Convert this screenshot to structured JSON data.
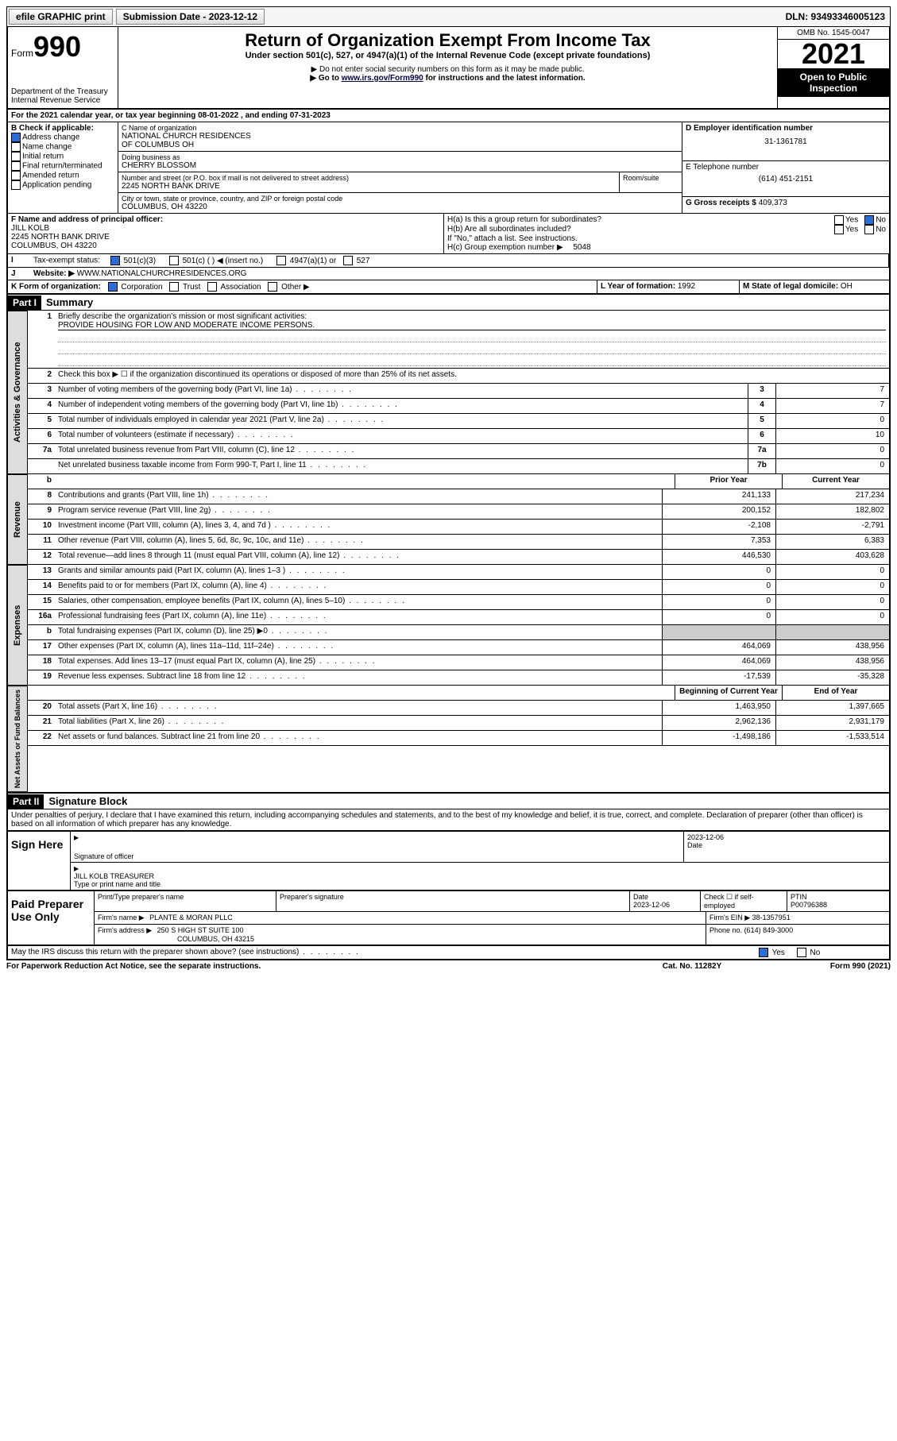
{
  "topbar": {
    "efile": "efile GRAPHIC print",
    "submission_label": "Submission Date - 2023-12-12",
    "dln": "DLN: 93493346005123"
  },
  "header": {
    "form_prefix": "Form",
    "form_num": "990",
    "dept": "Department of the Treasury",
    "irs": "Internal Revenue Service",
    "title": "Return of Organization Exempt From Income Tax",
    "sub": "Under section 501(c), 527, or 4947(a)(1) of the Internal Revenue Code (except private foundations)",
    "note1": "▶ Do not enter social security numbers on this form as it may be made public.",
    "note2_pre": "▶ Go to ",
    "note2_link": "www.irs.gov/Form990",
    "note2_post": " for instructions and the latest information.",
    "omb": "OMB No. 1545-0047",
    "year": "2021",
    "inspect1": "Open to Public",
    "inspect2": "Inspection"
  },
  "lineA": "For the 2021 calendar year, or tax year beginning 08-01-2022    , and ending 07-31-2023",
  "boxB": {
    "label": "B Check if applicable:",
    "items": [
      "Address change",
      "Name change",
      "Initial return",
      "Final return/terminated",
      "Amended return",
      "Application pending"
    ],
    "checked_idx": 0
  },
  "boxC": {
    "label_name": "C Name of organization",
    "org1": "NATIONAL CHURCH RESIDENCES",
    "org2": "OF COLUMBUS OH",
    "dba_label": "Doing business as",
    "dba": "CHERRY BLOSSOM",
    "addr_label": "Number and street (or P.O. box if mail is not delivered to street address)",
    "addr": "2245 NORTH BANK DRIVE",
    "room_label": "Room/suite",
    "city_label": "City or town, state or province, country, and ZIP or foreign postal code",
    "city": "COLUMBUS, OH  43220"
  },
  "boxD": {
    "label": "D Employer identification number",
    "val": "31-1361781"
  },
  "boxE": {
    "label": "E Telephone number",
    "val": "(614) 451-2151"
  },
  "boxG": {
    "label": "G Gross receipts $",
    "val": "409,373"
  },
  "boxF": {
    "label": "F Name and address of principal officer:",
    "name": "JILL KOLB",
    "addr": "2245 NORTH BANK DRIVE",
    "city": "COLUMBUS, OH  43220"
  },
  "boxH": {
    "ha": "H(a)  Is this a group return for subordinates?",
    "hb": "H(b)  Are all subordinates included?",
    "hnote": "If \"No,\" attach a list. See instructions.",
    "hc": "H(c)  Group exemption number ▶",
    "hc_val": "5048",
    "yes": "Yes",
    "no": "No"
  },
  "boxI": {
    "label": "Tax-exempt status:",
    "opts": [
      "501(c)(3)",
      "501(c) (  ) ◀ (insert no.)",
      "4947(a)(1) or",
      "527"
    ]
  },
  "boxJ": {
    "label": "Website: ▶",
    "val": "WWW.NATIONALCHURCHRESIDENCES.ORG"
  },
  "boxK": {
    "label": "K Form of organization:",
    "opts": [
      "Corporation",
      "Trust",
      "Association",
      "Other ▶"
    ]
  },
  "boxL": {
    "label": "L Year of formation:",
    "val": "1992"
  },
  "boxM": {
    "label": "M State of legal domicile:",
    "val": "OH"
  },
  "part1": {
    "header": "Part I",
    "title": "Summary",
    "l1_label": "Briefly describe the organization's mission or most significant activities:",
    "l1_text": "PROVIDE HOUSING FOR LOW AND MODERATE INCOME PERSONS.",
    "l2": "Check this box ▶ ☐  if the organization discontinued its operations or disposed of more than 25% of its net assets.",
    "gov_rows": [
      {
        "n": "3",
        "label": "Number of voting members of the governing body (Part VI, line 1a)",
        "box": "3",
        "val": "7"
      },
      {
        "n": "4",
        "label": "Number of independent voting members of the governing body (Part VI, line 1b)",
        "box": "4",
        "val": "7"
      },
      {
        "n": "5",
        "label": "Total number of individuals employed in calendar year 2021 (Part V, line 2a)",
        "box": "5",
        "val": "0"
      },
      {
        "n": "6",
        "label": "Total number of volunteers (estimate if necessary)",
        "box": "6",
        "val": "10"
      },
      {
        "n": "7a",
        "label": "Total unrelated business revenue from Part VIII, column (C), line 12",
        "box": "7a",
        "val": "0"
      },
      {
        "n": "",
        "label": "Net unrelated business taxable income from Form 990-T, Part I, line 11",
        "box": "7b",
        "val": "0"
      }
    ],
    "col_b": "b",
    "col_prior": "Prior Year",
    "col_current": "Current Year",
    "rev_rows": [
      {
        "n": "8",
        "label": "Contributions and grants (Part VIII, line 1h)",
        "p": "241,133",
        "c": "217,234"
      },
      {
        "n": "9",
        "label": "Program service revenue (Part VIII, line 2g)",
        "p": "200,152",
        "c": "182,802"
      },
      {
        "n": "10",
        "label": "Investment income (Part VIII, column (A), lines 3, 4, and 7d )",
        "p": "-2,108",
        "c": "-2,791"
      },
      {
        "n": "11",
        "label": "Other revenue (Part VIII, column (A), lines 5, 6d, 8c, 9c, 10c, and 11e)",
        "p": "7,353",
        "c": "6,383"
      },
      {
        "n": "12",
        "label": "Total revenue—add lines 8 through 11 (must equal Part VIII, column (A), line 12)",
        "p": "446,530",
        "c": "403,628"
      }
    ],
    "exp_rows": [
      {
        "n": "13",
        "label": "Grants and similar amounts paid (Part IX, column (A), lines 1–3 )",
        "p": "0",
        "c": "0"
      },
      {
        "n": "14",
        "label": "Benefits paid to or for members (Part IX, column (A), line 4)",
        "p": "0",
        "c": "0"
      },
      {
        "n": "15",
        "label": "Salaries, other compensation, employee benefits (Part IX, column (A), lines 5–10)",
        "p": "0",
        "c": "0"
      },
      {
        "n": "16a",
        "label": "Professional fundraising fees (Part IX, column (A), line 11e)",
        "p": "0",
        "c": "0"
      },
      {
        "n": "b",
        "label": "Total fundraising expenses (Part IX, column (D), line 25) ▶0",
        "p": "",
        "c": "",
        "shade": true
      },
      {
        "n": "17",
        "label": "Other expenses (Part IX, column (A), lines 11a–11d, 11f–24e)",
        "p": "464,069",
        "c": "438,956"
      },
      {
        "n": "18",
        "label": "Total expenses. Add lines 13–17 (must equal Part IX, column (A), line 25)",
        "p": "464,069",
        "c": "438,956"
      },
      {
        "n": "19",
        "label": "Revenue less expenses. Subtract line 18 from line 12",
        "p": "-17,539",
        "c": "-35,328"
      }
    ],
    "col_begin": "Beginning of Current Year",
    "col_end": "End of Year",
    "net_rows": [
      {
        "n": "20",
        "label": "Total assets (Part X, line 16)",
        "p": "1,463,950",
        "c": "1,397,665"
      },
      {
        "n": "21",
        "label": "Total liabilities (Part X, line 26)",
        "p": "2,962,136",
        "c": "2,931,179"
      },
      {
        "n": "22",
        "label": "Net assets or fund balances. Subtract line 21 from line 20",
        "p": "-1,498,186",
        "c": "-1,533,514"
      }
    ],
    "vtabs": {
      "gov": "Activities & Governance",
      "rev": "Revenue",
      "exp": "Expenses",
      "net": "Net Assets or Fund Balances"
    }
  },
  "part2": {
    "header": "Part II",
    "title": "Signature Block",
    "decl": "Under penalties of perjury, I declare that I have examined this return, including accompanying schedules and statements, and to the best of my knowledge and belief, it is true, correct, and complete. Declaration of preparer (other than officer) is based on all information of which preparer has any knowledge.",
    "sign_here": "Sign Here",
    "sig_officer": "Signature of officer",
    "sig_date": "2023-12-06",
    "date_label": "Date",
    "officer_name": "JILL KOLB  TREASURER",
    "name_title_label": "Type or print name and title",
    "paid": "Paid Preparer Use Only",
    "prep_name_label": "Print/Type preparer's name",
    "prep_sig_label": "Preparer's signature",
    "prep_date_label": "Date",
    "prep_date": "2023-12-06",
    "check_label": "Check ☐ if self-employed",
    "ptin_label": "PTIN",
    "ptin": "P00796388",
    "firm_name_label": "Firm's name    ▶",
    "firm_name": "PLANTE & MORAN PLLC",
    "firm_ein_label": "Firm's EIN ▶",
    "firm_ein": "38-1357951",
    "firm_addr_label": "Firm's address ▶",
    "firm_addr1": "250 S HIGH ST SUITE 100",
    "firm_addr2": "COLUMBUS, OH  43215",
    "phone_label": "Phone no.",
    "phone": "(614) 849-3000",
    "may_irs": "May the IRS discuss this return with the preparer shown above? (see instructions)",
    "yes": "Yes",
    "no": "No"
  },
  "footer": {
    "left": "For Paperwork Reduction Act Notice, see the separate instructions.",
    "mid": "Cat. No. 11282Y",
    "right": "Form 990 (2021)"
  }
}
